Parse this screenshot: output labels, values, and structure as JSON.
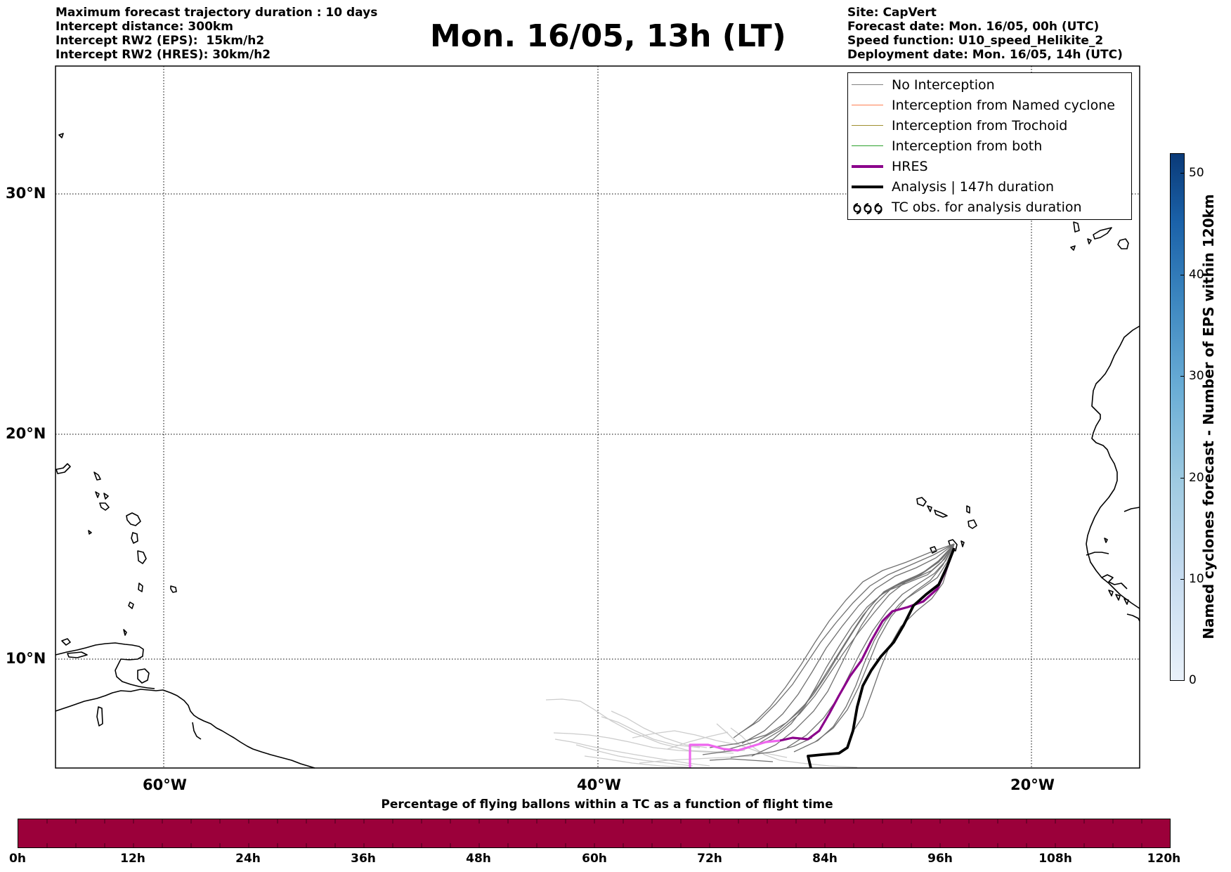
{
  "header": {
    "left_lines": [
      "Maximum forecast trajectory duration : 10 days",
      "Intercept distance: 300km",
      "Intercept RW2 (EPS):  15km/h2",
      "Intercept RW2 (HRES): 30km/h2"
    ],
    "title": "Mon. 16/05, 13h (LT)",
    "right_lines": [
      "Site: CapVert",
      "Forecast date: Mon. 16/05, 00h (UTC)",
      "Speed function: U10_speed_Helikite_2",
      "Deployment date: Mon. 16/05, 14h (UTC)"
    ]
  },
  "map": {
    "lat_labels": [
      "30°N",
      "20°N",
      "10°N"
    ],
    "lon_labels": [
      "60°W",
      "40°W",
      "20°W"
    ],
    "gridlines": "dotted"
  },
  "legend": {
    "items": [
      {
        "label": "No Interception",
        "color": "#808080"
      },
      {
        "label": "Interception from Named cyclone",
        "color": "#ff7f50"
      },
      {
        "label": "Interception from Trochoid",
        "color": "#a09030"
      },
      {
        "label": "Interception from both",
        "color": "#2ca02c"
      },
      {
        "label": "HRES",
        "color": "#8b008b"
      },
      {
        "label": "Analysis | 147h duration",
        "color": "#000000"
      },
      {
        "label": "TC obs. for analysis duration",
        "icon": "tc-symbol-icon"
      }
    ]
  },
  "colorbar_vertical": {
    "label": "Named cyclones forecast - Number of EPS within 120km",
    "ticks": [
      "0",
      "10",
      "20",
      "30",
      "40",
      "50"
    ]
  },
  "colorbar_horizontal": {
    "title": "Percentage of flying ballons within a TC as a function of flight time",
    "ticks": [
      "0h",
      "12h",
      "24h",
      "36h",
      "48h",
      "60h",
      "72h",
      "84h",
      "96h",
      "108h",
      "120h"
    ],
    "fill_color": "#9b003a"
  }
}
